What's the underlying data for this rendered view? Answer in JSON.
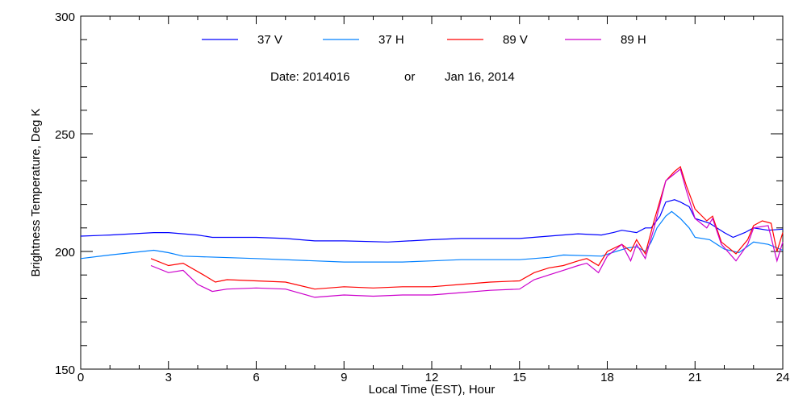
{
  "chart_data": {
    "type": "line",
    "title": "Date: 2014016     or     Jan 16, 2014",
    "date_code": "Date: 2014016",
    "date_or": "or",
    "date_text": "Jan 16, 2014",
    "xlabel": "Local Time (EST), Hour",
    "ylabel": "Brightness Temperature, Deg K",
    "xlim": [
      0,
      24
    ],
    "ylim": [
      150,
      300
    ],
    "xticks": [
      0,
      3,
      6,
      9,
      12,
      15,
      18,
      21,
      24
    ],
    "yticks": [
      150,
      200,
      250,
      300
    ],
    "legend_position": "top",
    "series": [
      {
        "name": "37 V",
        "color": "#0000ff",
        "x": [
          0,
          1,
          2.5,
          3,
          4,
          4.5,
          6,
          7,
          8,
          9,
          10.5,
          12,
          13,
          15,
          16,
          17,
          17.8,
          18.2,
          18.5,
          19,
          19.3,
          19.5,
          19.8,
          20,
          20.3,
          20.5,
          20.8,
          21,
          21.5,
          22,
          22.3,
          22.7,
          23,
          23.5,
          24
        ],
        "y": [
          206.5,
          207,
          208,
          208,
          207,
          206,
          206,
          205.5,
          204.5,
          204.5,
          204,
          205,
          205.5,
          205.5,
          206.5,
          207.5,
          207,
          208,
          209,
          208,
          210,
          210,
          215,
          221,
          222,
          221,
          219,
          214,
          212,
          208,
          206,
          208,
          210,
          209,
          209.5
        ]
      },
      {
        "name": "37 H",
        "color": "#0080ff",
        "x": [
          0,
          1,
          2.5,
          3,
          3.5,
          6,
          9,
          11,
          12,
          13,
          15,
          16,
          16.5,
          17.8,
          18.3,
          18.7,
          19,
          19.3,
          19.5,
          19.7,
          20,
          20.2,
          20.5,
          20.8,
          21,
          21.5,
          22,
          22.5,
          23,
          23.5,
          24
        ],
        "y": [
          197,
          198.5,
          200.5,
          199.5,
          198,
          197,
          195.5,
          195.5,
          196,
          196.5,
          196.5,
          197.5,
          198.5,
          198,
          200,
          201.5,
          202,
          200,
          204,
          210,
          215,
          217,
          214,
          210,
          206,
          205,
          201,
          199.5,
          204,
          203,
          200.5
        ]
      },
      {
        "name": "89 V",
        "color": "#ff0000",
        "x": [
          2.4,
          3,
          3.5,
          4.2,
          4.6,
          5,
          6,
          7,
          8,
          9,
          10,
          11,
          12,
          13,
          14,
          15,
          15.5,
          16,
          16.5,
          17,
          17.3,
          17.7,
          18,
          18.5,
          18.8,
          19,
          19.3,
          19.6,
          20,
          20.3,
          20.5,
          20.7,
          21,
          21.4,
          21.6,
          21.9,
          22.4,
          22.8,
          23,
          23.3,
          23.6,
          23.8,
          24
        ],
        "y": [
          197,
          194,
          195,
          190,
          187,
          188,
          187.5,
          187,
          184,
          185,
          184.5,
          185,
          185,
          186,
          187,
          187.5,
          191,
          193,
          194,
          196,
          197,
          194,
          200,
          203,
          200,
          205,
          199,
          213,
          230,
          234,
          236,
          228,
          218,
          213,
          215,
          204,
          199,
          205,
          211,
          213,
          212,
          200,
          208
        ]
      },
      {
        "name": "89 H",
        "color": "#cc00cc",
        "x": [
          2.4,
          3,
          3.5,
          4,
          4.5,
          5,
          6,
          7,
          8,
          9,
          10,
          11,
          12,
          13,
          14,
          15,
          15.5,
          16,
          16.5,
          17,
          17.3,
          17.7,
          18,
          18.5,
          18.8,
          19,
          19.3,
          19.6,
          20,
          20.3,
          20.5,
          20.7,
          21,
          21.4,
          21.6,
          21.9,
          22.4,
          22.8,
          23,
          23.5,
          23.8,
          24
        ],
        "y": [
          194,
          191,
          192,
          186,
          183,
          184,
          184.5,
          184,
          180.5,
          181.5,
          181,
          181.5,
          181.5,
          182.5,
          183.5,
          184,
          188,
          190,
          192,
          194,
          195,
          191,
          198,
          203,
          196,
          203,
          197,
          210,
          230,
          233,
          235,
          226,
          214,
          210,
          214,
          203,
          196,
          203,
          210,
          211,
          196,
          204
        ]
      }
    ]
  }
}
